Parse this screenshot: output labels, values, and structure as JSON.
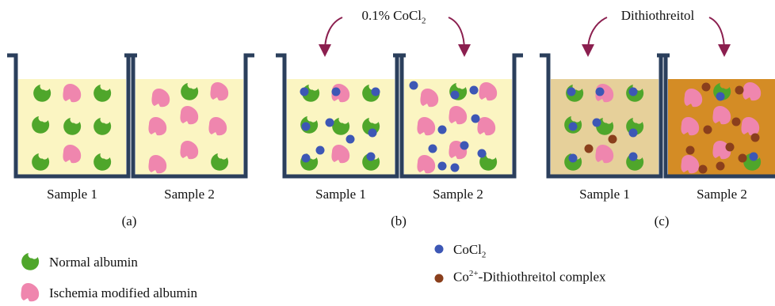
{
  "colors": {
    "container": "#2b3f5c",
    "liquid_a": "#fbf5c2",
    "liquid_c1": "#e6d09a",
    "liquid_c2": "#d48c25",
    "normal_albumin": "#4fa62b",
    "ischemia_albumin": "#ef86ae",
    "cocl2": "#3d57b5",
    "complex": "#8a3f1c",
    "arrow": "#8b1f4f"
  },
  "panels": [
    {
      "caption": "(a)",
      "sample1": "Sample 1",
      "sample2": "Sample 2"
    },
    {
      "caption": "(b)",
      "sample1": "Sample 1",
      "sample2": "Sample 2",
      "reagent": "0.1% CoCl",
      "reagent_sub": "2"
    },
    {
      "caption": "(c)",
      "sample1": "Sample 1",
      "sample2": "Sample 2",
      "reagent": "Dithiothreitol"
    }
  ],
  "legend": {
    "normal_albumin": "Normal albumin",
    "ischemia_albumin": "Ischemia modified albumin",
    "cocl2": "CoCl",
    "cocl2_sub": "2",
    "complex_prefix": "Co",
    "complex_sup": "2+",
    "complex_rest": "-Dithiothreitol complex"
  }
}
